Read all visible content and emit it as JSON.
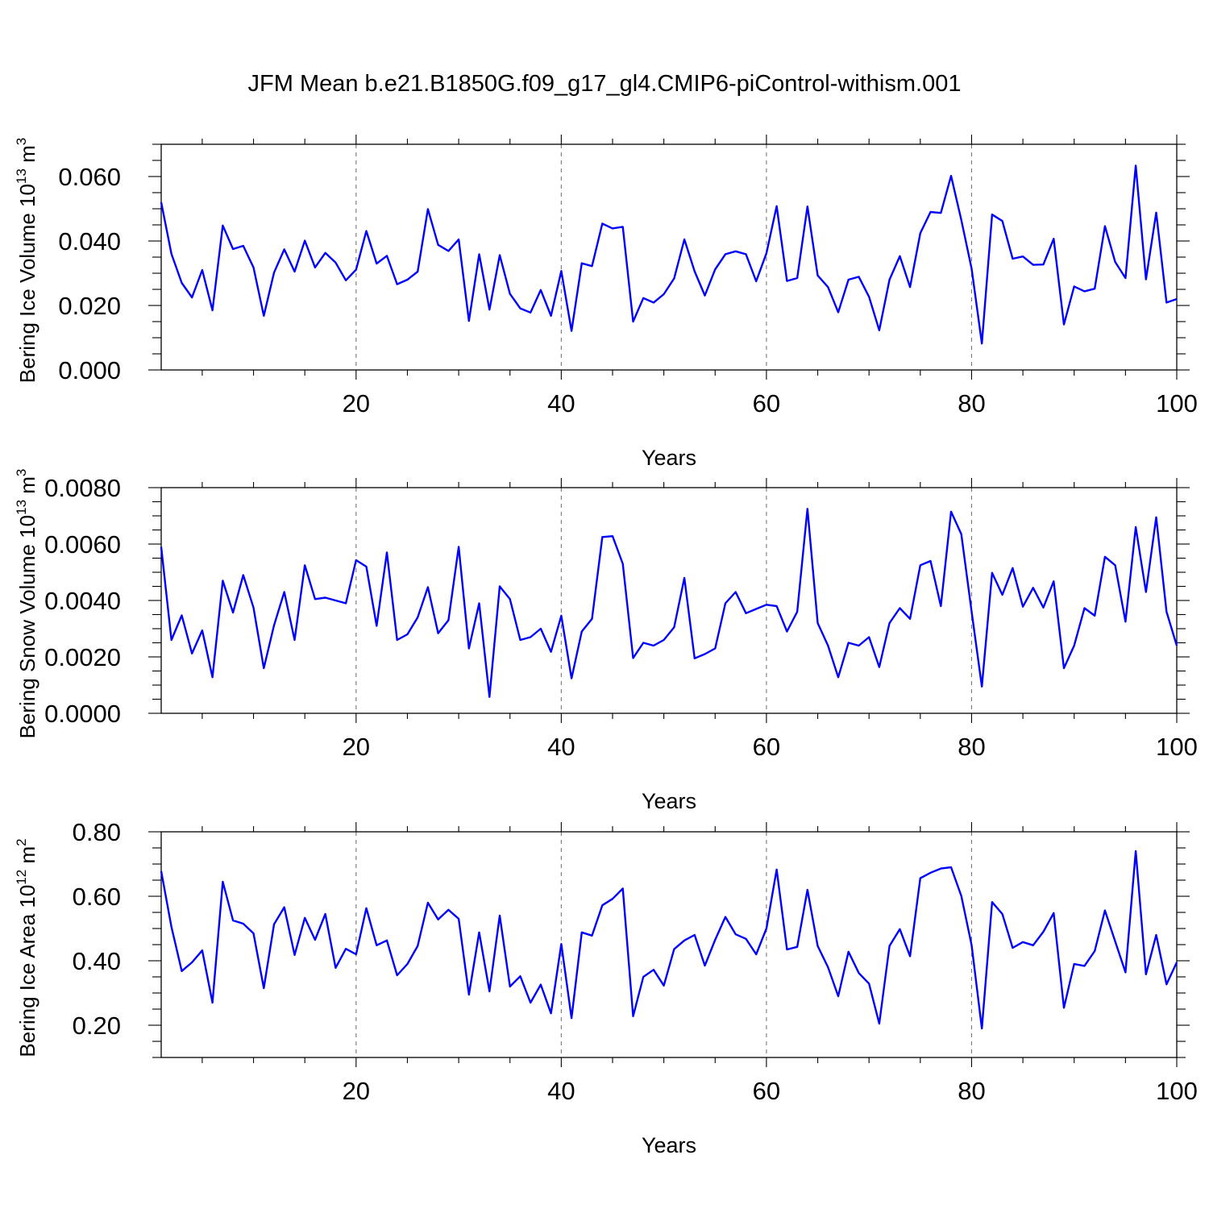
{
  "title": "JFM Mean b.e21.B1850G.f09_g17_gl4.CMIP6-piControl-withism.001",
  "colors": {
    "line": "#0000ff",
    "grid": "#777777",
    "axis": "#000000"
  },
  "chart_data": [
    {
      "type": "line",
      "ylabel": "Bering Ice Volume",
      "ylabel_unit_base": "10",
      "ylabel_unit_exp": "13",
      "ylabel_unit_tail": "m",
      "ylabel_unit_tail_exp": "3",
      "xlabel": "Years",
      "xlim": [
        1,
        100
      ],
      "ylim": [
        0.0,
        0.07
      ],
      "x_ticks": [
        20,
        40,
        60,
        80,
        100
      ],
      "x_tick_labels": [
        "20",
        "40",
        "60",
        "80",
        "100"
      ],
      "y_ticks": [
        0.0,
        0.02,
        0.04,
        0.06
      ],
      "y_tick_labels": [
        "0.000",
        "0.020",
        "0.040",
        "0.060"
      ],
      "grid": "vertical dashed at 20, 40, 60, 80",
      "series": [
        {
          "values": [
            0.052,
            0.036,
            0.027,
            0.0225,
            0.031,
            0.0185,
            0.0448,
            0.0375,
            0.0385,
            0.0318,
            0.0168,
            0.0302,
            0.0374,
            0.0305,
            0.0401,
            0.0318,
            0.0363,
            0.0333,
            0.0278,
            0.0311,
            0.0431,
            0.033,
            0.0354,
            0.0266,
            0.028,
            0.0305,
            0.0499,
            0.0388,
            0.0369,
            0.0405,
            0.0152,
            0.0359,
            0.0187,
            0.0356,
            0.0236,
            0.0191,
            0.0178,
            0.0248,
            0.0168,
            0.0307,
            0.0121,
            0.0331,
            0.0322,
            0.0454,
            0.0439,
            0.0444,
            0.015,
            0.0223,
            0.0209,
            0.0235,
            0.0284,
            0.0405,
            0.0306,
            0.0231,
            0.0312,
            0.0359,
            0.0368,
            0.0359,
            0.0275,
            0.0362,
            0.0508,
            0.0276,
            0.0285,
            0.0507,
            0.0293,
            0.0257,
            0.0179,
            0.028,
            0.0289,
            0.0227,
            0.0123,
            0.028,
            0.0353,
            0.0257,
            0.0424,
            0.049,
            0.0487,
            0.0602,
            0.0465,
            0.0314,
            0.0082,
            0.0482,
            0.0462,
            0.0345,
            0.0352,
            0.0326,
            0.0327,
            0.0407,
            0.0141,
            0.0259,
            0.0244,
            0.0252,
            0.0446,
            0.0335,
            0.0285,
            0.0634,
            0.0281,
            0.0488,
            0.0209,
            0.022
          ]
        }
      ]
    },
    {
      "type": "line",
      "ylabel": "Bering Snow Volume",
      "ylabel_unit_base": "10",
      "ylabel_unit_exp": "13",
      "ylabel_unit_tail": "m",
      "ylabel_unit_tail_exp": "3",
      "xlabel": "Years",
      "xlim": [
        1,
        100
      ],
      "ylim": [
        0.0,
        0.008
      ],
      "x_ticks": [
        20,
        40,
        60,
        80,
        100
      ],
      "x_tick_labels": [
        "20",
        "40",
        "60",
        "80",
        "100"
      ],
      "y_ticks": [
        0.0,
        0.002,
        0.004,
        0.006,
        0.008
      ],
      "y_tick_labels": [
        "0.0000",
        "0.0020",
        "0.0040",
        "0.0060",
        "0.0080"
      ],
      "grid": "vertical dashed at 20, 40, 60, 80",
      "series": [
        {
          "values": [
            0.0059,
            0.0026,
            0.00347,
            0.00212,
            0.00294,
            0.00128,
            0.0047,
            0.00357,
            0.0049,
            0.00375,
            0.0016,
            0.00312,
            0.0043,
            0.0026,
            0.00525,
            0.00405,
            0.0041,
            0.004,
            0.0039,
            0.00543,
            0.0052,
            0.0031,
            0.0057,
            0.0026,
            0.0028,
            0.0034,
            0.00447,
            0.00284,
            0.0033,
            0.0059,
            0.0023,
            0.0039,
            0.00058,
            0.0045,
            0.00405,
            0.0026,
            0.0027,
            0.003,
            0.00218,
            0.00346,
            0.00124,
            0.0029,
            0.00335,
            0.00625,
            0.00628,
            0.0053,
            0.00196,
            0.0025,
            0.0024,
            0.0026,
            0.00305,
            0.0048,
            0.00195,
            0.0021,
            0.0023,
            0.0039,
            0.0043,
            0.00355,
            0.0037,
            0.00385,
            0.0038,
            0.0029,
            0.0036,
            0.00725,
            0.0032,
            0.0024,
            0.00128,
            0.0025,
            0.0024,
            0.0027,
            0.00164,
            0.0032,
            0.00373,
            0.00335,
            0.00525,
            0.0054,
            0.0038,
            0.00715,
            0.00635,
            0.0036,
            0.00095,
            0.00498,
            0.0042,
            0.00515,
            0.00378,
            0.00445,
            0.00375,
            0.00468,
            0.0016,
            0.0024,
            0.00373,
            0.00346,
            0.00555,
            0.00525,
            0.00325,
            0.0066,
            0.0043,
            0.00695,
            0.0036,
            0.0024
          ]
        }
      ]
    },
    {
      "type": "line",
      "ylabel": "Bering Ice Area",
      "ylabel_unit_base": "10",
      "ylabel_unit_exp": "12",
      "ylabel_unit_tail": "m",
      "ylabel_unit_tail_exp": "2",
      "xlabel": "Years",
      "xlim": [
        1,
        100
      ],
      "ylim": [
        0.1,
        0.8
      ],
      "x_ticks": [
        20,
        40,
        60,
        80,
        100
      ],
      "x_tick_labels": [
        "20",
        "40",
        "60",
        "80",
        "100"
      ],
      "y_ticks": [
        0.2,
        0.4,
        0.6,
        0.8
      ],
      "y_tick_labels": [
        "0.20",
        "0.40",
        "0.60",
        "0.80"
      ],
      "grid": "vertical dashed at 20, 40, 60, 80",
      "series": [
        {
          "values": [
            0.678,
            0.505,
            0.368,
            0.395,
            0.432,
            0.27,
            0.645,
            0.525,
            0.515,
            0.485,
            0.315,
            0.513,
            0.566,
            0.418,
            0.533,
            0.465,
            0.545,
            0.378,
            0.437,
            0.42,
            0.563,
            0.448,
            0.463,
            0.355,
            0.39,
            0.446,
            0.58,
            0.528,
            0.558,
            0.53,
            0.295,
            0.488,
            0.305,
            0.54,
            0.32,
            0.352,
            0.27,
            0.326,
            0.237,
            0.452,
            0.222,
            0.488,
            0.478,
            0.572,
            0.592,
            0.624,
            0.228,
            0.35,
            0.372,
            0.323,
            0.436,
            0.463,
            0.48,
            0.385,
            0.465,
            0.536,
            0.482,
            0.468,
            0.42,
            0.5,
            0.683,
            0.435,
            0.443,
            0.62,
            0.446,
            0.38,
            0.29,
            0.428,
            0.362,
            0.329,
            0.205,
            0.446,
            0.498,
            0.414,
            0.656,
            0.673,
            0.686,
            0.69,
            0.601,
            0.448,
            0.19,
            0.582,
            0.545,
            0.44,
            0.458,
            0.448,
            0.49,
            0.548,
            0.254,
            0.39,
            0.384,
            0.43,
            0.556,
            0.46,
            0.364,
            0.74,
            0.358,
            0.48,
            0.327,
            0.395
          ]
        }
      ]
    }
  ]
}
